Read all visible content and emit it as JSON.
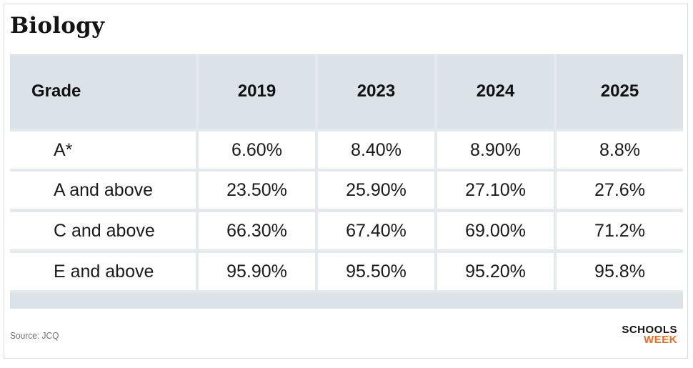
{
  "title": "Biology",
  "chart_data": {
    "type": "table",
    "columns": [
      "Grade",
      "2019",
      "2023",
      "2024",
      "2025"
    ],
    "rows": [
      [
        "A*",
        "6.60%",
        "8.40%",
        "8.90%",
        "8.8%"
      ],
      [
        "A and above",
        "23.50%",
        "25.90%",
        "27.10%",
        "27.6%"
      ],
      [
        "C and above",
        "66.30%",
        "67.40%",
        "69.00%",
        "71.2%"
      ],
      [
        "E and above",
        "95.90%",
        "95.50%",
        "95.20%",
        "95.8%"
      ]
    ]
  },
  "footer": {
    "source": "Source: JCQ",
    "logo_line1": "SCHOOLS",
    "logo_line2": "WEEK"
  },
  "colors": {
    "header_bg": "#dbe3e8",
    "logo_accent": "#f26b21"
  }
}
